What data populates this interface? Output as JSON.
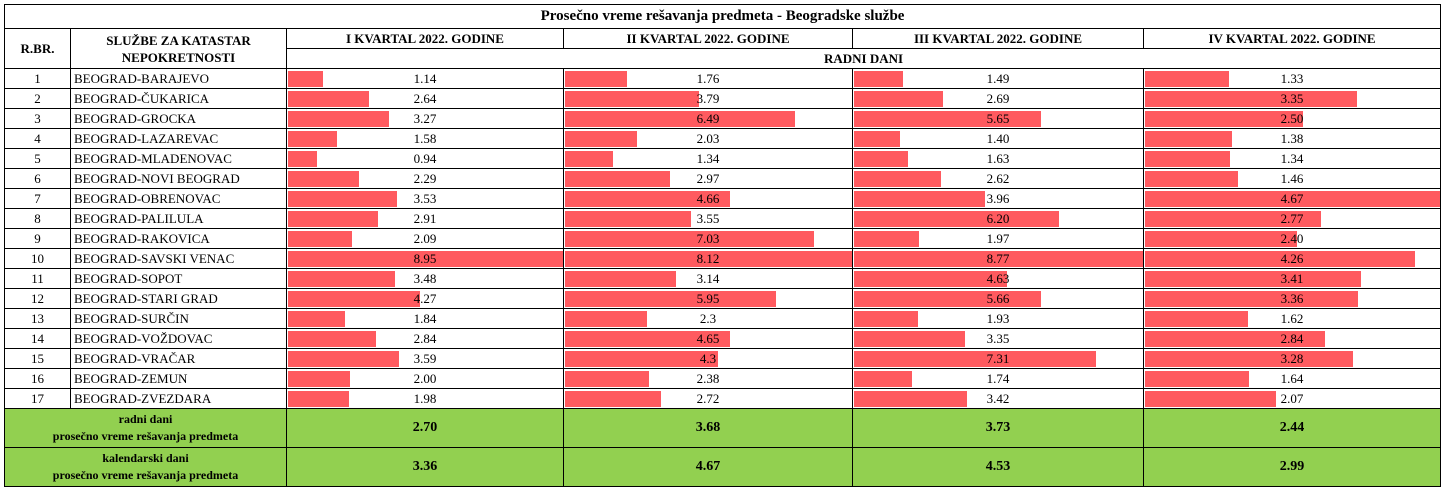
{
  "title": "Prosečno vreme rešavanja predmeta - Beogradske službe",
  "headers": {
    "rbr": "R.BR.",
    "service": "SLUŽBE ZA KATASTAR NEPOKRETNOSTI",
    "quarters": [
      "I KVARTAL 2022. GODINE",
      "II KVARTAL 2022. GODINE",
      "III KVARTAL 2022. GODINE",
      "IV KVARTAL 2022. GODINE"
    ],
    "unit": "RADNI DANI"
  },
  "bar_color": "#ff5a5f",
  "summary_color": "#92d050",
  "rows": [
    {
      "rbr": "1",
      "name": "BEOGRAD-BARAJEVO",
      "values": [
        "1.14",
        "1.76",
        "1.49",
        "1.33"
      ]
    },
    {
      "rbr": "2",
      "name": "BEOGRAD-ČUKARICA",
      "values": [
        "2.64",
        "3.79",
        "2.69",
        "3.35"
      ]
    },
    {
      "rbr": "3",
      "name": "BEOGRAD-GROCKA",
      "values": [
        "3.27",
        "6.49",
        "5.65",
        "2.50"
      ]
    },
    {
      "rbr": "4",
      "name": "BEOGRAD-LAZAREVAC",
      "values": [
        "1.58",
        "2.03",
        "1.40",
        "1.38"
      ]
    },
    {
      "rbr": "5",
      "name": "BEOGRAD-MLADENOVAC",
      "values": [
        "0.94",
        "1.34",
        "1.63",
        "1.34"
      ]
    },
    {
      "rbr": "6",
      "name": "BEOGRAD-NOVI BEOGRAD",
      "values": [
        "2.29",
        "2.97",
        "2.62",
        "1.46"
      ]
    },
    {
      "rbr": "7",
      "name": "BEOGRAD-OBRENOVAC",
      "values": [
        "3.53",
        "4.66",
        "3.96",
        "4.67"
      ]
    },
    {
      "rbr": "8",
      "name": "BEOGRAD-PALILULA",
      "values": [
        "2.91",
        "3.55",
        "6.20",
        "2.77"
      ]
    },
    {
      "rbr": "9",
      "name": "BEOGRAD-RAKOVICA",
      "values": [
        "2.09",
        "7.03",
        "1.97",
        "2.40"
      ]
    },
    {
      "rbr": "10",
      "name": "BEOGRAD-SAVSKI VENAC",
      "values": [
        "8.95",
        "8.12",
        "8.77",
        "4.26"
      ]
    },
    {
      "rbr": "11",
      "name": "BEOGRAD-SOPOT",
      "values": [
        "3.48",
        "3.14",
        "4.63",
        "3.41"
      ]
    },
    {
      "rbr": "12",
      "name": "BEOGRAD-STARI GRAD",
      "values": [
        "4.27",
        "5.95",
        "5.66",
        "3.36"
      ]
    },
    {
      "rbr": "13",
      "name": "BEOGRAD-SURČIN",
      "values": [
        "1.84",
        "2.3",
        "1.93",
        "1.62"
      ]
    },
    {
      "rbr": "14",
      "name": "BEOGRAD-VOŽDOVAC",
      "values": [
        "2.84",
        "4.65",
        "3.35",
        "2.84"
      ]
    },
    {
      "rbr": "15",
      "name": "BEOGRAD-VRAČAR",
      "values": [
        "3.59",
        "4.3",
        "7.31",
        "3.28"
      ]
    },
    {
      "rbr": "16",
      "name": "BEOGRAD-ZEMUN",
      "values": [
        "2.00",
        "2.38",
        "1.74",
        "1.64"
      ]
    },
    {
      "rbr": "17",
      "name": "BEOGRAD-ZVEZDARA",
      "values": [
        "1.98",
        "2.72",
        "3.42",
        "2.07"
      ]
    }
  ],
  "summary": [
    {
      "label_line1": "radni dani",
      "label_line2": "prosečno vreme rešavanja predmeta",
      "values": [
        "2.70",
        "3.68",
        "3.73",
        "2.44"
      ]
    },
    {
      "label_line1": "kalendarski dani",
      "label_line2": "prosečno vreme rešavanja predmeta",
      "values": [
        "3.36",
        "4.67",
        "4.53",
        "2.99"
      ]
    }
  ]
}
